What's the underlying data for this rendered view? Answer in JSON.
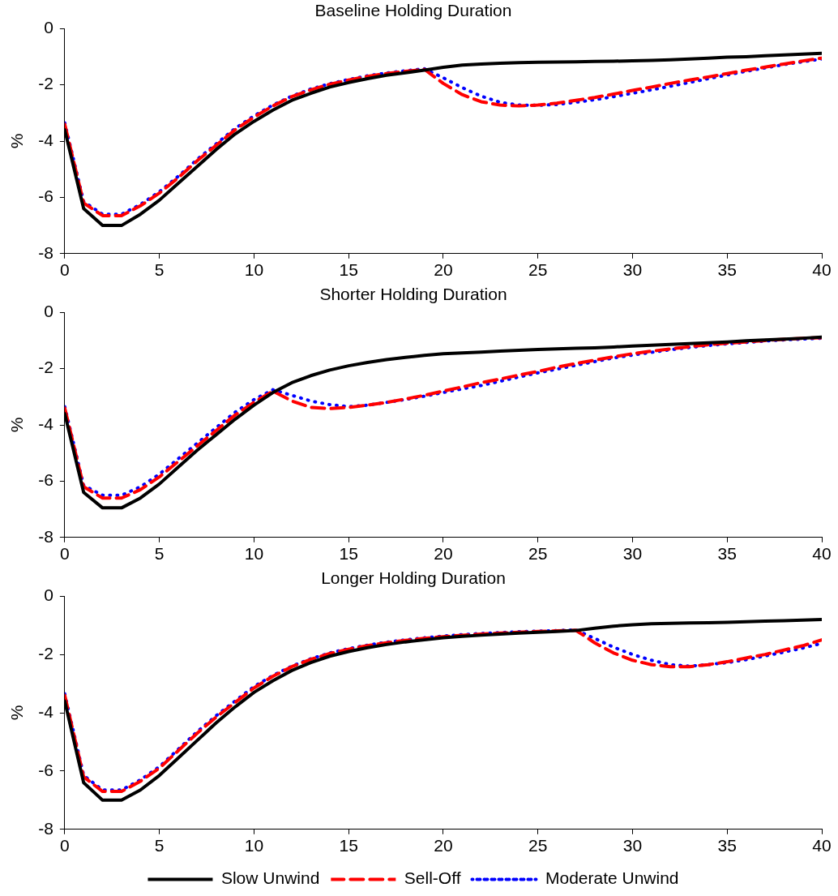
{
  "chart_data": [
    {
      "type": "line",
      "title": "Baseline Holding Duration",
      "ylabel": "%",
      "x": [
        0,
        1,
        2,
        3,
        4,
        5,
        6,
        7,
        8,
        9,
        10,
        11,
        12,
        13,
        14,
        15,
        16,
        17,
        18,
        19,
        20,
        21,
        22,
        23,
        24,
        25,
        26,
        27,
        28,
        29,
        30,
        31,
        32,
        33,
        34,
        35,
        36,
        37,
        38,
        39,
        40
      ],
      "xlim": [
        0,
        40
      ],
      "xticks": [
        0,
        5,
        10,
        15,
        20,
        25,
        30,
        35,
        40
      ],
      "ylim": [
        -8,
        0
      ],
      "yticks": [
        -8,
        -6,
        -4,
        -2,
        0
      ],
      "marker": "none",
      "series": [
        {
          "color": "#000000",
          "line_style": "solid",
          "values": [
            -3.6,
            -6.4,
            -7.0,
            -7.0,
            -6.6,
            -6.1,
            -5.5,
            -4.9,
            -4.3,
            -3.75,
            -3.3,
            -2.9,
            -2.55,
            -2.3,
            -2.08,
            -1.92,
            -1.78,
            -1.66,
            -1.57,
            -1.48,
            -1.38,
            -1.3,
            -1.26,
            -1.23,
            -1.21,
            -1.2,
            -1.19,
            -1.18,
            -1.17,
            -1.16,
            -1.15,
            -1.13,
            -1.11,
            -1.08,
            -1.05,
            -1.02,
            -1.0,
            -0.97,
            -0.94,
            -0.91,
            -0.88
          ]
        },
        {
          "color": "#ff0000",
          "line_style": "dashed",
          "values": [
            -3.4,
            -6.2,
            -6.65,
            -6.65,
            -6.3,
            -5.85,
            -5.3,
            -4.7,
            -4.15,
            -3.6,
            -3.15,
            -2.75,
            -2.42,
            -2.18,
            -1.98,
            -1.83,
            -1.7,
            -1.6,
            -1.52,
            -1.45,
            -1.95,
            -2.35,
            -2.6,
            -2.72,
            -2.75,
            -2.72,
            -2.65,
            -2.55,
            -2.45,
            -2.33,
            -2.2,
            -2.08,
            -1.95,
            -1.83,
            -1.72,
            -1.6,
            -1.48,
            -1.37,
            -1.26,
            -1.15,
            -1.05
          ]
        },
        {
          "color": "#0000ff",
          "line_style": "dotted",
          "values": [
            -3.35,
            -6.15,
            -6.6,
            -6.6,
            -6.25,
            -5.8,
            -5.25,
            -4.65,
            -4.1,
            -3.55,
            -3.1,
            -2.72,
            -2.4,
            -2.15,
            -1.96,
            -1.81,
            -1.68,
            -1.58,
            -1.5,
            -1.43,
            -1.75,
            -2.1,
            -2.4,
            -2.62,
            -2.72,
            -2.73,
            -2.7,
            -2.62,
            -2.53,
            -2.42,
            -2.3,
            -2.18,
            -2.05,
            -1.92,
            -1.78,
            -1.65,
            -1.52,
            -1.4,
            -1.28,
            -1.18,
            -1.08
          ]
        }
      ]
    },
    {
      "type": "line",
      "title": "Shorter Holding Duration",
      "ylabel": "%",
      "x": [
        0,
        1,
        2,
        3,
        4,
        5,
        6,
        7,
        8,
        9,
        10,
        11,
        12,
        13,
        14,
        15,
        16,
        17,
        18,
        19,
        20,
        21,
        22,
        23,
        24,
        25,
        26,
        27,
        28,
        29,
        30,
        31,
        32,
        33,
        34,
        35,
        36,
        37,
        38,
        39,
        40
      ],
      "xlim": [
        0,
        40
      ],
      "xticks": [
        0,
        5,
        10,
        15,
        20,
        25,
        30,
        35,
        40
      ],
      "ylim": [
        -8,
        0
      ],
      "yticks": [
        -8,
        -6,
        -4,
        -2,
        0
      ],
      "marker": "none",
      "series": [
        {
          "color": "#000000",
          "line_style": "solid",
          "values": [
            -3.6,
            -6.4,
            -6.95,
            -6.95,
            -6.6,
            -6.1,
            -5.5,
            -4.9,
            -4.35,
            -3.8,
            -3.3,
            -2.85,
            -2.5,
            -2.25,
            -2.05,
            -1.9,
            -1.78,
            -1.68,
            -1.6,
            -1.53,
            -1.47,
            -1.44,
            -1.41,
            -1.38,
            -1.35,
            -1.32,
            -1.3,
            -1.28,
            -1.26,
            -1.23,
            -1.2,
            -1.17,
            -1.14,
            -1.11,
            -1.08,
            -1.05,
            -1.01,
            -0.98,
            -0.95,
            -0.92,
            -0.88
          ]
        },
        {
          "color": "#ff0000",
          "line_style": "dashed",
          "values": [
            -3.4,
            -6.2,
            -6.6,
            -6.6,
            -6.3,
            -5.85,
            -5.3,
            -4.75,
            -4.2,
            -3.65,
            -3.2,
            -2.8,
            -3.15,
            -3.38,
            -3.42,
            -3.38,
            -3.3,
            -3.2,
            -3.08,
            -2.95,
            -2.8,
            -2.65,
            -2.5,
            -2.37,
            -2.23,
            -2.1,
            -1.95,
            -1.82,
            -1.7,
            -1.58,
            -1.47,
            -1.38,
            -1.3,
            -1.22,
            -1.15,
            -1.1,
            -1.05,
            -1.0,
            -0.96,
            -0.92,
            -0.9
          ]
        },
        {
          "color": "#0000ff",
          "line_style": "dotted",
          "values": [
            -3.35,
            -6.15,
            -6.5,
            -6.5,
            -6.2,
            -5.75,
            -5.2,
            -4.65,
            -4.1,
            -3.55,
            -3.1,
            -2.75,
            -2.95,
            -3.15,
            -3.28,
            -3.35,
            -3.3,
            -3.2,
            -3.1,
            -2.98,
            -2.85,
            -2.72,
            -2.6,
            -2.45,
            -2.3,
            -2.15,
            -2.02,
            -1.88,
            -1.75,
            -1.62,
            -1.52,
            -1.42,
            -1.33,
            -1.25,
            -1.18,
            -1.12,
            -1.07,
            -1.02,
            -0.98,
            -0.95,
            -0.92
          ]
        }
      ]
    },
    {
      "type": "line",
      "title": "Longer Holding Duration",
      "ylabel": "%",
      "x": [
        0,
        1,
        2,
        3,
        4,
        5,
        6,
        7,
        8,
        9,
        10,
        11,
        12,
        13,
        14,
        15,
        16,
        17,
        18,
        19,
        20,
        21,
        22,
        23,
        24,
        25,
        26,
        27,
        28,
        29,
        30,
        31,
        32,
        33,
        34,
        35,
        36,
        37,
        38,
        39,
        40
      ],
      "xlim": [
        0,
        40
      ],
      "xticks": [
        0,
        5,
        10,
        15,
        20,
        25,
        30,
        35,
        40
      ],
      "ylim": [
        -8,
        0
      ],
      "yticks": [
        -8,
        -6,
        -4,
        -2,
        0
      ],
      "marker": "none",
      "legend": "bottom",
      "series": [
        {
          "name": "Slow Unwind",
          "color": "#000000",
          "line_style": "solid",
          "values": [
            -3.6,
            -6.4,
            -7.0,
            -7.0,
            -6.65,
            -6.15,
            -5.55,
            -4.95,
            -4.35,
            -3.8,
            -3.3,
            -2.9,
            -2.55,
            -2.28,
            -2.06,
            -1.9,
            -1.77,
            -1.66,
            -1.57,
            -1.5,
            -1.43,
            -1.38,
            -1.34,
            -1.3,
            -1.27,
            -1.24,
            -1.21,
            -1.18,
            -1.1,
            -1.03,
            -0.98,
            -0.95,
            -0.93,
            -0.92,
            -0.91,
            -0.9,
            -0.88,
            -0.86,
            -0.84,
            -0.82,
            -0.8
          ]
        },
        {
          "name": "Sell-Off",
          "color": "#ff0000",
          "line_style": "dashed",
          "values": [
            -3.4,
            -6.2,
            -6.7,
            -6.7,
            -6.35,
            -5.9,
            -5.3,
            -4.7,
            -4.15,
            -3.65,
            -3.15,
            -2.75,
            -2.42,
            -2.17,
            -1.97,
            -1.82,
            -1.7,
            -1.6,
            -1.52,
            -1.45,
            -1.39,
            -1.34,
            -1.3,
            -1.27,
            -1.24,
            -1.21,
            -1.19,
            -1.17,
            -1.6,
            -1.95,
            -2.2,
            -2.35,
            -2.42,
            -2.42,
            -2.35,
            -2.25,
            -2.12,
            -2.0,
            -1.85,
            -1.7,
            -1.5
          ]
        },
        {
          "name": "Moderate Unwind",
          "color": "#0000ff",
          "line_style": "dotted",
          "values": [
            -3.35,
            -6.15,
            -6.65,
            -6.65,
            -6.3,
            -5.85,
            -5.25,
            -4.65,
            -4.1,
            -3.6,
            -3.1,
            -2.72,
            -2.4,
            -2.15,
            -1.95,
            -1.8,
            -1.68,
            -1.58,
            -1.5,
            -1.43,
            -1.37,
            -1.32,
            -1.28,
            -1.25,
            -1.22,
            -1.2,
            -1.18,
            -1.16,
            -1.45,
            -1.75,
            -2.0,
            -2.2,
            -2.35,
            -2.4,
            -2.35,
            -2.28,
            -2.18,
            -2.05,
            -1.92,
            -1.78,
            -1.62
          ]
        }
      ]
    }
  ]
}
